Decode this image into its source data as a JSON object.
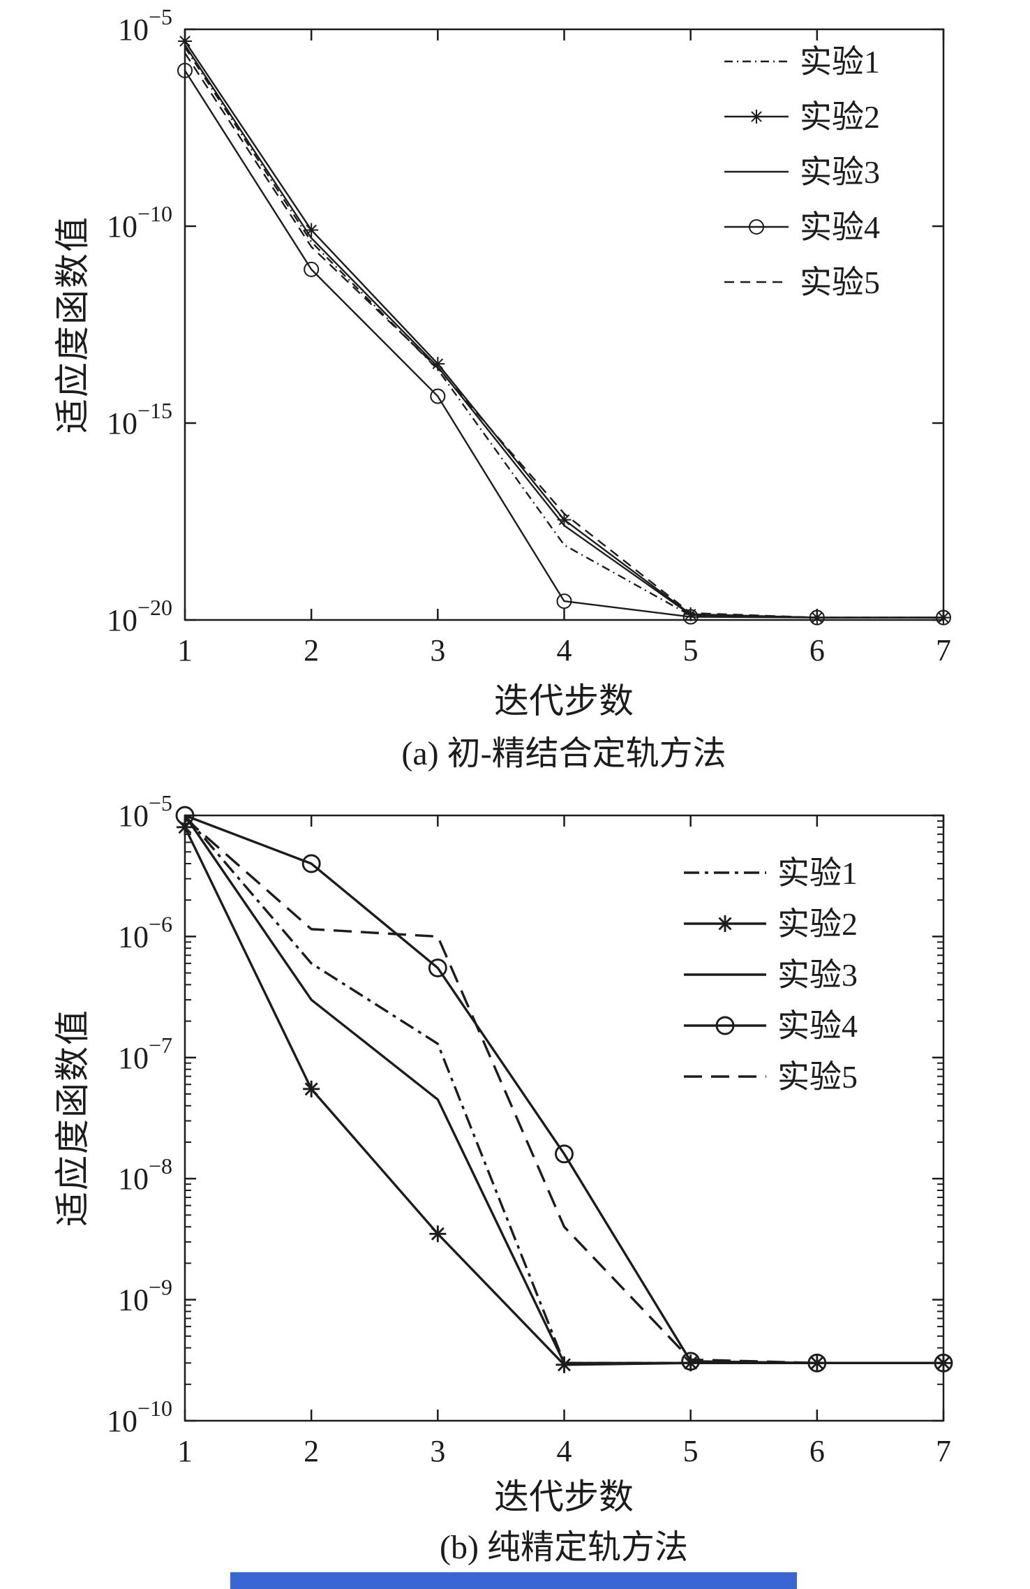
{
  "page": {
    "background": "#ffffff",
    "ink_color": "#1c1c1c",
    "bottom_bar_color": "#3a66d4"
  },
  "chart_data": [
    {
      "type": "line",
      "caption": "(a) 初-精结合定轨方法",
      "xlabel": "迭代步数",
      "ylabel": "适应度函数值",
      "y_scale": "log",
      "grid": false,
      "legend_position": "upper-right",
      "xlim": [
        1,
        7
      ],
      "x_ticks": [
        1,
        2,
        3,
        4,
        5,
        6,
        7
      ],
      "ylim_exp": [
        -20,
        -5
      ],
      "y_tick_exps": [
        -5,
        -10,
        -15,
        -20
      ],
      "series": [
        {
          "name": "实验1",
          "style": "dashdot",
          "marker": "none",
          "points": [
            [
              1,
              3.5e-06
            ],
            [
              2,
              4e-11
            ],
            [
              3,
              2.3e-14
            ],
            [
              4,
              8e-19
            ],
            [
              5,
              1.3e-20
            ],
            [
              6,
              1.15e-20
            ],
            [
              7,
              1.15e-20
            ]
          ]
        },
        {
          "name": "实验2",
          "style": "solid",
          "marker": "star",
          "points": [
            [
              1,
              5e-06
            ],
            [
              2,
              8e-11
            ],
            [
              3,
              3.2e-14
            ],
            [
              4,
              3.5e-18
            ],
            [
              5,
              1.4e-20
            ],
            [
              6,
              1.15e-20
            ],
            [
              7,
              1.15e-20
            ]
          ]
        },
        {
          "name": "实验3",
          "style": "solid",
          "marker": "none",
          "points": [
            [
              1,
              4e-06
            ],
            [
              2,
              5e-11
            ],
            [
              3,
              2.7e-14
            ],
            [
              4,
              2.5e-18
            ],
            [
              5,
              1.35e-20
            ],
            [
              6,
              1.15e-20
            ],
            [
              7,
              1.15e-20
            ]
          ]
        },
        {
          "name": "实验4",
          "style": "solid",
          "marker": "circle",
          "points": [
            [
              1,
              9e-07
            ],
            [
              2,
              8e-12
            ],
            [
              3,
              4.8e-15
            ],
            [
              4,
              3e-20
            ],
            [
              5,
              1.2e-20
            ],
            [
              6,
              1.15e-20
            ],
            [
              7,
              1.15e-20
            ]
          ]
        },
        {
          "name": "实验5",
          "style": "dashed",
          "marker": "none",
          "points": [
            [
              1,
              2.5e-06
            ],
            [
              2,
              3e-11
            ],
            [
              3,
              2.5e-14
            ],
            [
              4,
              5e-18
            ],
            [
              5,
              1.5e-20
            ],
            [
              6,
              1.15e-20
            ],
            [
              7,
              1.15e-20
            ]
          ]
        }
      ]
    },
    {
      "type": "line",
      "caption": "(b) 纯精定轨方法",
      "xlabel": "迭代步数",
      "ylabel": "适应度函数值",
      "y_scale": "log",
      "grid": false,
      "legend_position": "upper-right",
      "xlim": [
        1,
        7
      ],
      "x_ticks": [
        1,
        2,
        3,
        4,
        5,
        6,
        7
      ],
      "ylim_exp": [
        -10,
        -5
      ],
      "y_tick_exps": [
        -5,
        -6,
        -7,
        -8,
        -9,
        -10
      ],
      "series": [
        {
          "name": "实验1",
          "style": "dashdot",
          "marker": "none",
          "points": [
            [
              1,
              1e-05
            ],
            [
              2,
              6e-07
            ],
            [
              3,
              1.3e-07
            ],
            [
              4,
              3e-10
            ],
            [
              5,
              3e-10
            ],
            [
              6,
              3e-10
            ],
            [
              7,
              3e-10
            ]
          ]
        },
        {
          "name": "实验2",
          "style": "solid",
          "marker": "star",
          "points": [
            [
              1,
              8e-06
            ],
            [
              2,
              5.5e-08
            ],
            [
              3,
              3.5e-09
            ],
            [
              4,
              2.9e-10
            ],
            [
              5,
              3e-10
            ],
            [
              6,
              3e-10
            ],
            [
              7,
              3e-10
            ]
          ]
        },
        {
          "name": "实验3",
          "style": "solid",
          "marker": "none",
          "points": [
            [
              1,
              1e-05
            ],
            [
              2,
              3e-07
            ],
            [
              3,
              4.5e-08
            ],
            [
              4,
              3e-10
            ],
            [
              5,
              3e-10
            ],
            [
              6,
              3e-10
            ],
            [
              7,
              3e-10
            ]
          ]
        },
        {
          "name": "实验4",
          "style": "solid",
          "marker": "circle",
          "points": [
            [
              1,
              1e-05
            ],
            [
              2,
              4e-06
            ],
            [
              3,
              5.5e-07
            ],
            [
              4,
              1.6e-08
            ],
            [
              5,
              3.1e-10
            ],
            [
              6,
              3e-10
            ],
            [
              7,
              3e-10
            ]
          ]
        },
        {
          "name": "实验5",
          "style": "dashed",
          "marker": "none",
          "points": [
            [
              1,
              9.5e-06
            ],
            [
              2,
              1.15e-06
            ],
            [
              3,
              1e-06
            ],
            [
              4,
              4e-09
            ],
            [
              5,
              3.2e-10
            ],
            [
              6,
              3e-10
            ],
            [
              7,
              3e-10
            ]
          ]
        }
      ]
    }
  ]
}
